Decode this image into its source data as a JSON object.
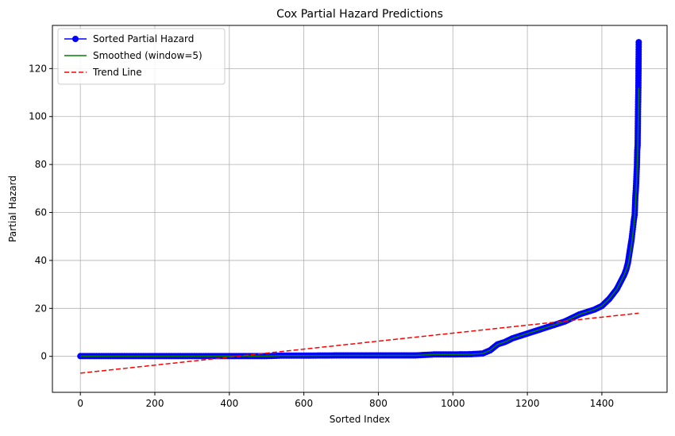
{
  "chart_data": {
    "type": "line",
    "title": "Cox Partial Hazard Predictions",
    "xlabel": "Sorted Index",
    "ylabel": "Partial Hazard",
    "xlim": [
      -75,
      1575
    ],
    "ylim": [
      -15,
      138
    ],
    "xticks": [
      0,
      200,
      400,
      600,
      800,
      1000,
      1200,
      1400
    ],
    "yticks": [
      0,
      20,
      40,
      60,
      80,
      100,
      120
    ],
    "grid": true,
    "legend_position": "top-left",
    "series": [
      {
        "name": "Sorted Partial Hazard",
        "style": "line-marker",
        "color": "#0000ff",
        "x": [
          0,
          100,
          200,
          300,
          400,
          500,
          540,
          600,
          700,
          800,
          900,
          950,
          1000,
          1050,
          1080,
          1100,
          1120,
          1140,
          1160,
          1180,
          1200,
          1220,
          1240,
          1260,
          1280,
          1300,
          1320,
          1340,
          1360,
          1380,
          1400,
          1410,
          1420,
          1430,
          1440,
          1450,
          1460,
          1465,
          1470,
          1475,
          1480,
          1483,
          1486,
          1488,
          1490,
          1491,
          1492,
          1493,
          1494,
          1495,
          1496,
          1497,
          1498,
          1499
        ],
        "values": [
          0.1,
          0.1,
          0.1,
          0.1,
          0.1,
          0.1,
          0.3,
          0.3,
          0.4,
          0.4,
          0.4,
          0.8,
          0.8,
          0.9,
          1.2,
          2.5,
          5,
          6,
          7.5,
          8.5,
          9.5,
          10.5,
          11.5,
          12.5,
          13.5,
          14.5,
          16,
          17.5,
          18.5,
          19.5,
          21,
          22.5,
          24,
          26,
          28,
          31,
          34,
          36,
          39,
          44,
          49,
          53,
          57,
          59,
          67,
          69,
          72,
          76,
          79,
          86,
          88,
          103,
          112,
          131
        ]
      },
      {
        "name": "Smoothed (window=5)",
        "style": "line",
        "color": "#008000",
        "x": [
          0,
          100,
          200,
          300,
          400,
          500,
          540,
          600,
          700,
          800,
          900,
          950,
          1000,
          1050,
          1080,
          1100,
          1120,
          1140,
          1160,
          1180,
          1200,
          1220,
          1240,
          1260,
          1280,
          1300,
          1320,
          1340,
          1360,
          1380,
          1400,
          1410,
          1420,
          1430,
          1440,
          1450,
          1460,
          1465,
          1470,
          1475,
          1480,
          1483,
          1486,
          1488,
          1490,
          1491,
          1492,
          1493,
          1494,
          1495,
          1496,
          1497,
          1498,
          1499
        ],
        "values": [
          0.1,
          0.1,
          0.1,
          0.1,
          0.1,
          0.1,
          0.3,
          0.3,
          0.4,
          0.4,
          0.4,
          0.8,
          0.8,
          0.9,
          1.2,
          2.5,
          5,
          6,
          7.5,
          8.5,
          9.5,
          10.5,
          11.5,
          12.5,
          13.5,
          14.5,
          16,
          17.5,
          18.5,
          19.5,
          21,
          22.5,
          24,
          26,
          28,
          31,
          34,
          36,
          38,
          42,
          47,
          51,
          55,
          58,
          63,
          66,
          69,
          72,
          76,
          80,
          85,
          92,
          100,
          112
        ]
      },
      {
        "name": "Trend Line",
        "style": "dashed",
        "color": "#ff0000",
        "x": [
          0,
          1499
        ],
        "values": [
          -7,
          18
        ]
      }
    ]
  }
}
